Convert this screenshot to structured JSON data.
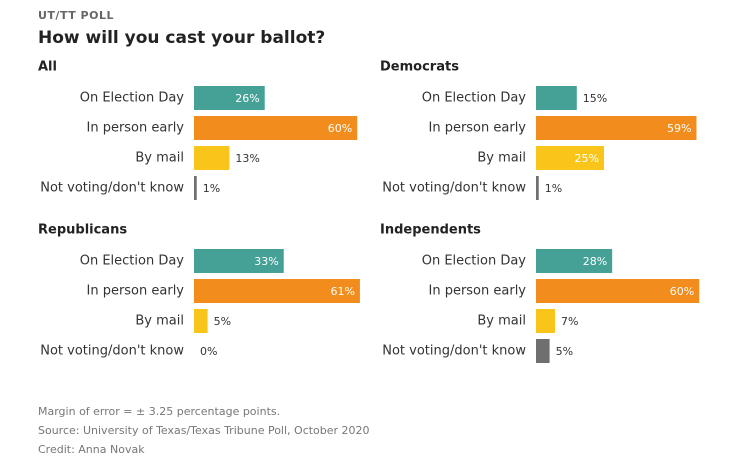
{
  "kicker": "UT/TT POLL",
  "title": "How will you cast your ballot?",
  "notes": [
    "Margin of error = ± 3.25 percentage points.",
    "Source: University of Texas/Texas Tribune Poll, October 2020",
    "Credit: Anna Novak"
  ],
  "chart_data": [
    {
      "type": "hbar",
      "title": "All",
      "categories": [
        "On Election Day",
        "In person early",
        "By mail",
        "Not voting/don't know"
      ],
      "values": [
        26,
        60,
        13,
        1
      ],
      "value_labels": [
        "26%",
        "60%",
        "13%",
        "1%"
      ],
      "colors": [
        "#45a196",
        "#f28c1c",
        "#f9c51b",
        "#6f6f6f"
      ]
    },
    {
      "type": "hbar",
      "title": "Democrats",
      "categories": [
        "On Election Day",
        "In person early",
        "By mail",
        "Not voting/don't know"
      ],
      "values": [
        15,
        59,
        25,
        1
      ],
      "value_labels": [
        "15%",
        "59%",
        "25%",
        "1%"
      ],
      "colors": [
        "#45a196",
        "#f28c1c",
        "#f9c51b",
        "#6f6f6f"
      ]
    },
    {
      "type": "hbar",
      "title": "Republicans",
      "categories": [
        "On Election Day",
        "In person early",
        "By mail",
        "Not voting/don't know"
      ],
      "values": [
        33,
        61,
        5,
        0
      ],
      "value_labels": [
        "33%",
        "61%",
        "5%",
        "0%"
      ],
      "colors": [
        "#45a196",
        "#f28c1c",
        "#f9c51b",
        "#6f6f6f"
      ]
    },
    {
      "type": "hbar",
      "title": "Independents",
      "categories": [
        "On Election Day",
        "In person early",
        "By mail",
        "Not voting/don't know"
      ],
      "values": [
        28,
        60,
        7,
        5
      ],
      "value_labels": [
        "28%",
        "60%",
        "7%",
        "5%"
      ],
      "colors": [
        "#45a196",
        "#f28c1c",
        "#f9c51b",
        "#6f6f6f"
      ]
    }
  ]
}
